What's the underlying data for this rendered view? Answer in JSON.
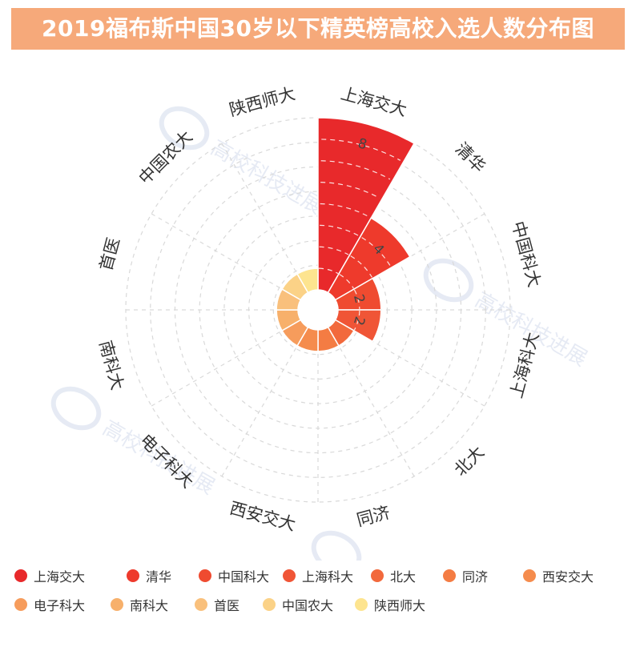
{
  "title": "2019福布斯中国30岁以下精英榜高校入选人数分布图",
  "watermark_text": "高校科技进展",
  "chart_data": {
    "type": "polar-bar",
    "categories": [
      "上海交大",
      "清华",
      "中国科大",
      "上海科大",
      "北大",
      "同济",
      "西安交大",
      "电子科大",
      "南科大",
      "首医",
      "中国农大",
      "陕西师大"
    ],
    "values": [
      8,
      4,
      2,
      2,
      1,
      1,
      1,
      1,
      1,
      1,
      1,
      1
    ],
    "data_labels": [
      "8",
      "4",
      "2",
      "2",
      "",
      "",
      "",
      "",
      "",
      "",
      "",
      ""
    ],
    "radial_max": 8,
    "radial_grid_steps": 7,
    "grid": true,
    "legend_position": "bottom",
    "colors": [
      "#e8292b",
      "#ee3a2c",
      "#ef4b30",
      "#f05536",
      "#f2693c",
      "#f47c43",
      "#f58c4d",
      "#f69c5c",
      "#f7b06b",
      "#f9c07c",
      "#fbd287",
      "#fde48f"
    ]
  }
}
